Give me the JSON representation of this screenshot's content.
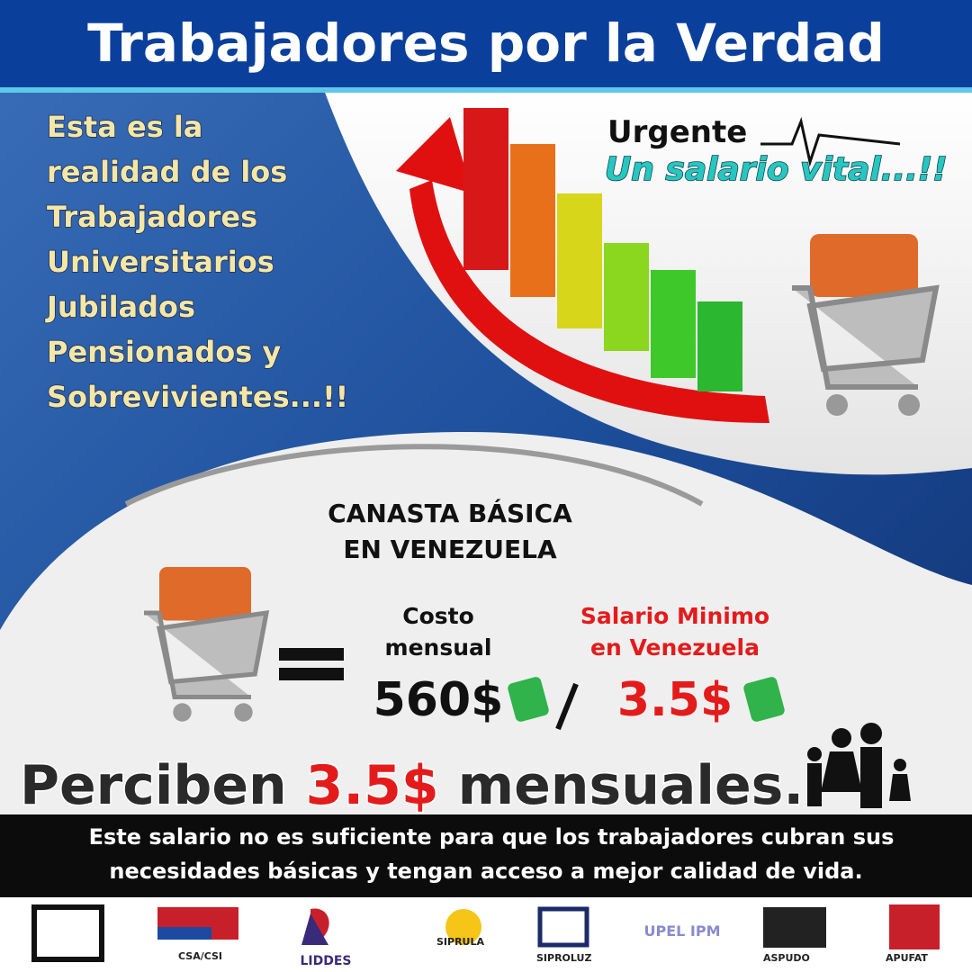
{
  "header": {
    "title": "Trabajadores por la Verdad"
  },
  "intro": {
    "lines": [
      "Esta es la",
      "realidad de los",
      "Trabajadores",
      "Universitarios",
      "Jubilados",
      "Pensionados y",
      "Sobrevivientes...!!"
    ]
  },
  "urgent": {
    "label": "Urgente",
    "slogan": "Un salario vital...!!"
  },
  "basket": {
    "title_lines": [
      "CANASTA BÁSICA",
      "EN VENEZUELA"
    ],
    "cost_label": [
      "Costo",
      "mensual"
    ],
    "cost": "560$",
    "wage_label": [
      "Salario Minimo",
      "en Venezuela"
    ],
    "wage": "3.5$"
  },
  "headline": {
    "before": "Perciben",
    "amount": "3.5$",
    "after": "mensuales."
  },
  "footer": {
    "lines": [
      "Este salario no es suficiente para que los trabajadores cubran sus",
      "necesidades básicas y tengan acceso a mejor calidad de vida."
    ]
  },
  "logos": [
    "CSA/CSI",
    "LIDDES",
    "SIPRULA",
    "SIPROLUZ",
    "UPEL IPM",
    "ASPUDO",
    "APUFAT"
  ]
}
